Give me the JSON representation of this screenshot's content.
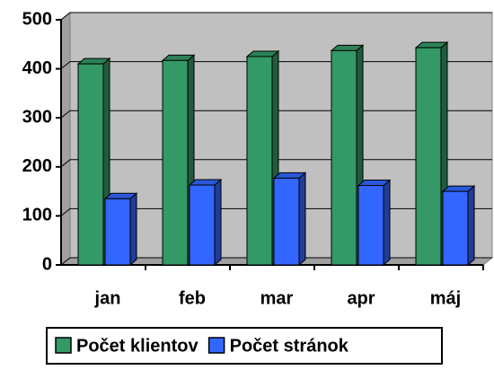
{
  "chart_data": {
    "type": "bar",
    "categories": [
      "jan",
      "feb",
      "mar",
      "apr",
      "máj"
    ],
    "series": [
      {
        "name": "Počet klientov",
        "color": "#339966",
        "values": [
          410,
          417,
          425,
          437,
          443
        ]
      },
      {
        "name": "Počet stránok",
        "color": "#3366ff",
        "values": [
          135,
          163,
          177,
          162,
          150
        ]
      }
    ],
    "ylim": [
      0,
      500
    ],
    "yticks": [
      0,
      100,
      200,
      300,
      400,
      500
    ],
    "grid": true,
    "legend": "bottom"
  }
}
